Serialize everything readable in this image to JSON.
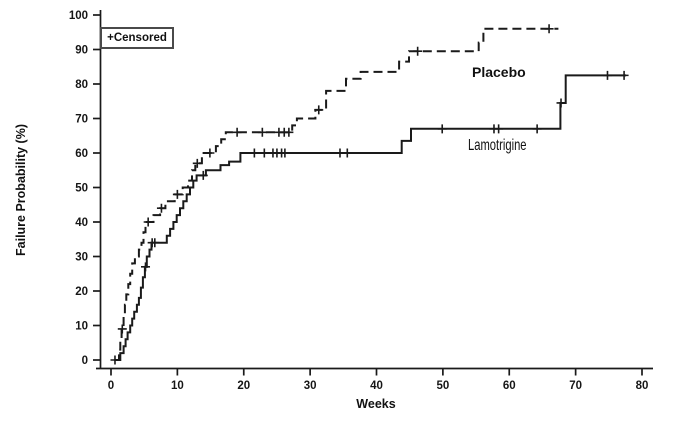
{
  "figure": {
    "background": "#ffffff",
    "ink_color": "#1a1a1a"
  },
  "chart_data": {
    "type": "line",
    "variant": "kaplan_meier_step",
    "title": "",
    "xlabel": "Weeks",
    "ylabel": "Failure Probability (%)",
    "xlim": [
      0,
      80
    ],
    "ylim": [
      0,
      100
    ],
    "x_ticks": [
      0,
      10,
      20,
      30,
      40,
      50,
      60,
      70,
      80
    ],
    "y_ticks": [
      0,
      10,
      20,
      30,
      40,
      50,
      60,
      70,
      80,
      90,
      100
    ],
    "grid": false,
    "legend_note": "+Censored",
    "legend_position": "top-left",
    "series": [
      {
        "name": "Placebo",
        "line_style": "dashed",
        "steps_week_pct": [
          [
            0.7,
            0
          ],
          [
            1.2,
            3
          ],
          [
            1.4,
            6
          ],
          [
            1.6,
            9
          ],
          [
            1.9,
            13
          ],
          [
            2.1,
            16
          ],
          [
            2.3,
            19
          ],
          [
            2.6,
            22
          ],
          [
            2.9,
            25
          ],
          [
            3.2,
            28
          ],
          [
            3.6,
            30
          ],
          [
            4.2,
            32
          ],
          [
            4.6,
            34
          ],
          [
            4.9,
            37
          ],
          [
            5.2,
            40
          ],
          [
            6.4,
            42
          ],
          [
            7.4,
            44
          ],
          [
            8.2,
            46
          ],
          [
            9.6,
            48
          ],
          [
            10.8,
            50
          ],
          [
            11.6,
            52
          ],
          [
            12.2,
            55
          ],
          [
            12.7,
            57
          ],
          [
            13.7,
            60
          ],
          [
            15.8,
            62
          ],
          [
            16.6,
            64
          ],
          [
            17.3,
            66
          ],
          [
            27.3,
            68
          ],
          [
            28.0,
            70
          ],
          [
            30.8,
            72.5
          ],
          [
            32.4,
            78
          ],
          [
            35.4,
            81.5
          ],
          [
            37.6,
            83.5
          ],
          [
            43.4,
            86.5
          ],
          [
            44.9,
            89.5
          ],
          [
            55.4,
            92
          ],
          [
            56.1,
            96
          ]
        ],
        "end_week": 67.4,
        "censored_week_pct": [
          [
            1.7,
            9
          ],
          [
            5.6,
            40
          ],
          [
            7.6,
            44
          ],
          [
            10.0,
            48
          ],
          [
            13.0,
            57
          ],
          [
            14.9,
            60
          ],
          [
            19.0,
            66
          ],
          [
            22.8,
            66
          ],
          [
            25.3,
            66
          ],
          [
            26.1,
            66
          ],
          [
            26.8,
            66
          ],
          [
            31.3,
            72.5
          ],
          [
            46.2,
            89.5
          ],
          [
            66.0,
            96
          ]
        ]
      },
      {
        "name": "Lamotrigine",
        "line_style": "solid",
        "steps_week_pct": [
          [
            0.5,
            0
          ],
          [
            1.4,
            2
          ],
          [
            1.9,
            4
          ],
          [
            2.2,
            6
          ],
          [
            2.5,
            8
          ],
          [
            2.9,
            10
          ],
          [
            3.2,
            12
          ],
          [
            3.5,
            14
          ],
          [
            3.9,
            16
          ],
          [
            4.2,
            18
          ],
          [
            4.5,
            21
          ],
          [
            4.8,
            24
          ],
          [
            5.1,
            27
          ],
          [
            5.4,
            30
          ],
          [
            5.8,
            32
          ],
          [
            6.1,
            34
          ],
          [
            8.4,
            36
          ],
          [
            8.9,
            38
          ],
          [
            9.4,
            40
          ],
          [
            9.9,
            42
          ],
          [
            10.4,
            44
          ],
          [
            10.9,
            46
          ],
          [
            11.4,
            48
          ],
          [
            11.9,
            50
          ],
          [
            12.4,
            52
          ],
          [
            12.9,
            53.5
          ],
          [
            14.3,
            55
          ],
          [
            16.5,
            56.5
          ],
          [
            17.8,
            57.5
          ],
          [
            19.5,
            60
          ],
          [
            43.8,
            63.5
          ],
          [
            45.2,
            67
          ],
          [
            67.7,
            74.5
          ],
          [
            68.5,
            82.5
          ]
        ],
        "end_week": 77.6,
        "censored_week_pct": [
          [
            0.6,
            0
          ],
          [
            5.2,
            27
          ],
          [
            6.2,
            34
          ],
          [
            6.6,
            34
          ],
          [
            13.9,
            53.5
          ],
          [
            21.6,
            60
          ],
          [
            23.1,
            60
          ],
          [
            24.4,
            60
          ],
          [
            25.0,
            60
          ],
          [
            25.7,
            60
          ],
          [
            26.2,
            60
          ],
          [
            34.5,
            60
          ],
          [
            35.6,
            60
          ],
          [
            49.9,
            67
          ],
          [
            57.7,
            67
          ],
          [
            58.4,
            67
          ],
          [
            64.2,
            67
          ],
          [
            67.8,
            74.5
          ],
          [
            74.8,
            82.5
          ],
          [
            77.3,
            82.5
          ]
        ]
      }
    ]
  }
}
